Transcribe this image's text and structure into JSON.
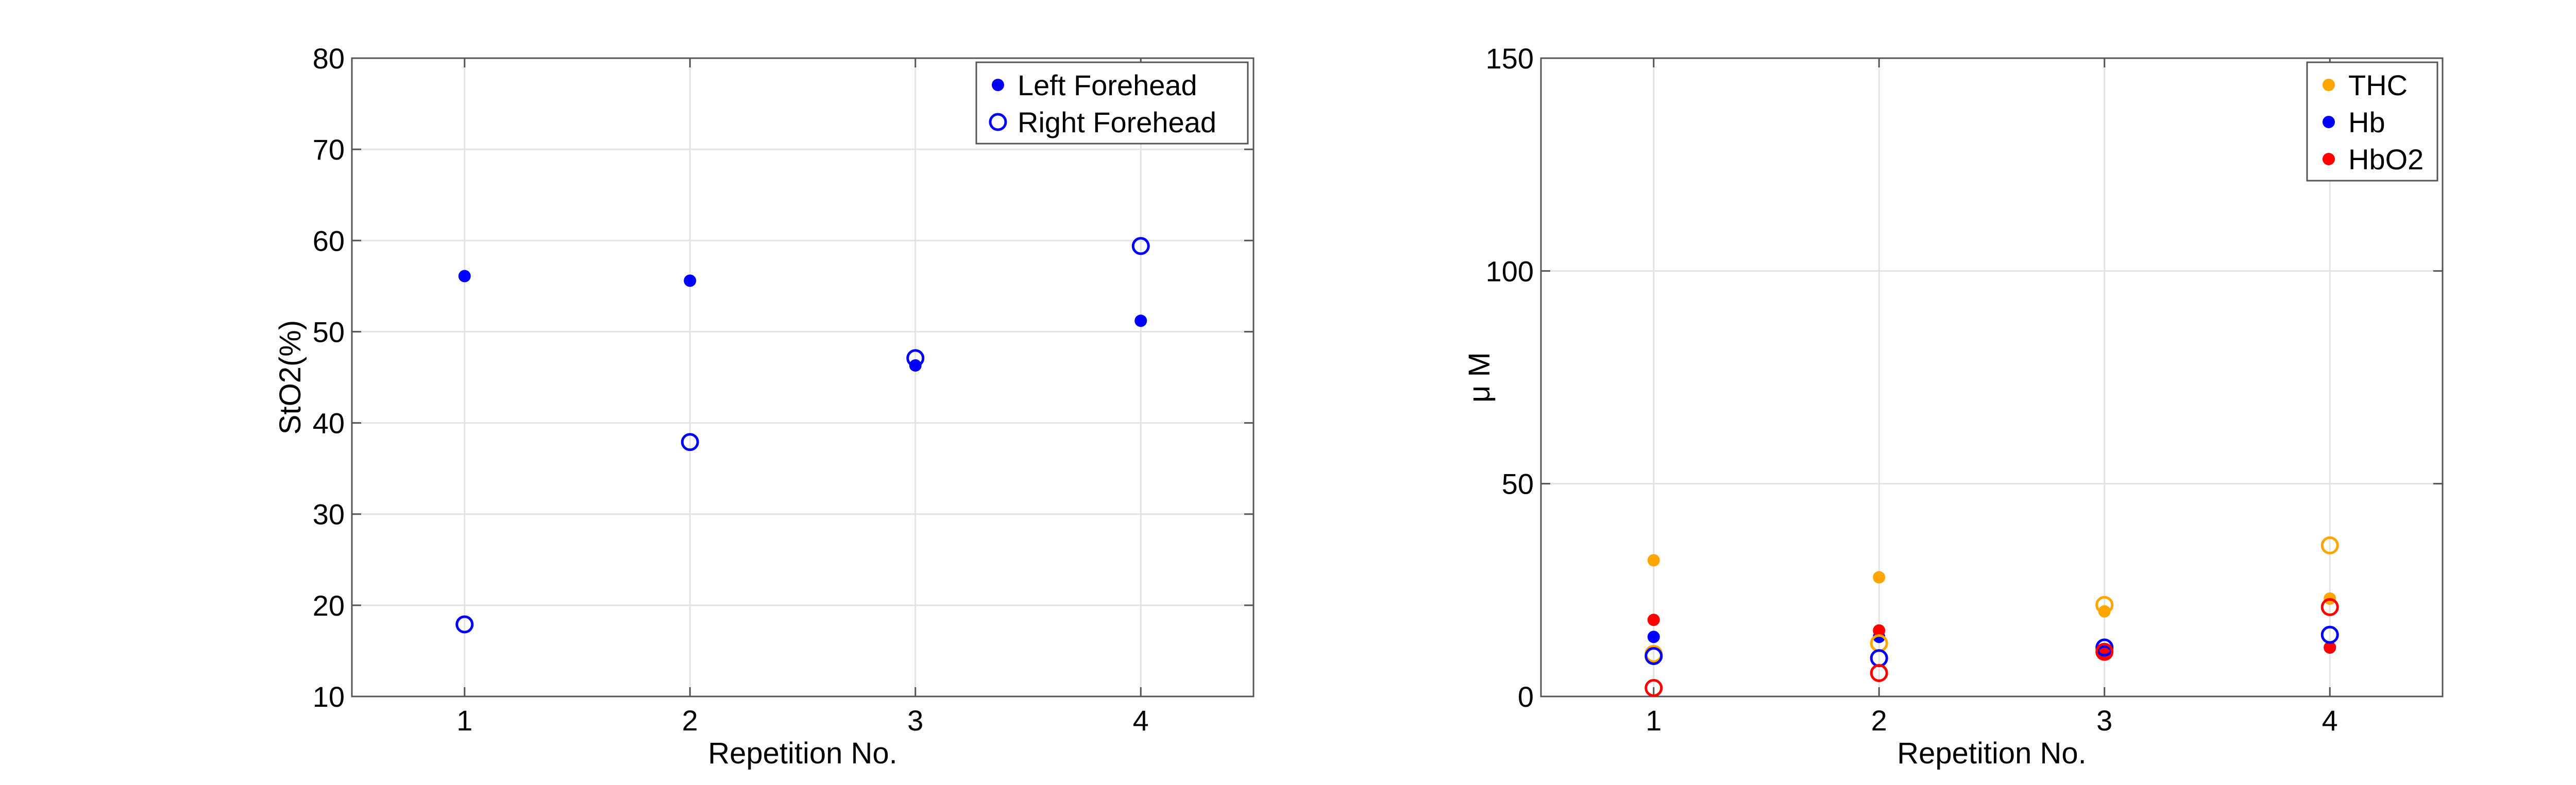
{
  "chart_data": [
    {
      "type": "scatter",
      "title": "",
      "xlabel": "Repetition No.",
      "ylabel": "StO2(%)",
      "xlim": [
        0.5,
        4.5
      ],
      "ylim": [
        10,
        80
      ],
      "xticks": [
        1,
        2,
        3,
        4
      ],
      "xtick_labels": [
        "1",
        "2",
        "3",
        "4"
      ],
      "yticks": [
        10,
        20,
        30,
        40,
        50,
        60,
        70,
        80
      ],
      "ytick_labels": [
        "10",
        "20",
        "30",
        "40",
        "50",
        "60",
        "70",
        "80"
      ],
      "grid": true,
      "legend_position": "top-right",
      "series": [
        {
          "name": "Left Forehead",
          "marker": "filled",
          "color": "#0000ff",
          "x": [
            1,
            2,
            3,
            4
          ],
          "y": [
            56.1,
            55.6,
            46.3,
            51.2
          ]
        },
        {
          "name": "Right Forehead",
          "marker": "open",
          "color": "#0000ff",
          "x": [
            1,
            2,
            3,
            4
          ],
          "y": [
            17.9,
            37.9,
            47.1,
            59.4
          ]
        }
      ]
    },
    {
      "type": "scatter",
      "title": "",
      "xlabel": "Repetition No.",
      "ylabel": "μ M",
      "xlim": [
        0.5,
        4.5
      ],
      "ylim": [
        0,
        150
      ],
      "xticks": [
        1,
        2,
        3,
        4
      ],
      "xtick_labels": [
        "1",
        "2",
        "3",
        "4"
      ],
      "yticks": [
        0,
        50,
        100,
        150
      ],
      "ytick_labels": [
        "0",
        "50",
        "100",
        "150"
      ],
      "grid": true,
      "legend_position": "top-right",
      "series": [
        {
          "name": "THC",
          "marker": "filled",
          "color": "#ffa500",
          "x": [
            1,
            2,
            3,
            4
          ],
          "y": [
            32,
            28,
            20,
            23
          ]
        },
        {
          "name": "Hb",
          "marker": "filled",
          "color": "#0000ff",
          "x": [
            1,
            2,
            3,
            4
          ],
          "y": [
            14,
            14,
            11,
            11.5
          ]
        },
        {
          "name": "HbO2",
          "marker": "filled",
          "color": "#ff0000",
          "x": [
            1,
            2,
            3,
            4
          ],
          "y": [
            18,
            15.5,
            10,
            11.5
          ]
        },
        {
          "name": "",
          "marker": "open",
          "color": "#ffa500",
          "x": [
            1,
            2,
            3,
            4
          ],
          "y": [
            10,
            12.5,
            21.5,
            35.5
          ]
        },
        {
          "name": "",
          "marker": "open",
          "color": "#0000ff",
          "x": [
            1,
            2,
            3,
            4
          ],
          "y": [
            9.5,
            9,
            11.5,
            14.5
          ]
        },
        {
          "name": "",
          "marker": "open",
          "color": "#ff0000",
          "x": [
            1,
            2,
            3,
            4
          ],
          "y": [
            2,
            5.5,
            10.5,
            21
          ]
        }
      ]
    }
  ]
}
